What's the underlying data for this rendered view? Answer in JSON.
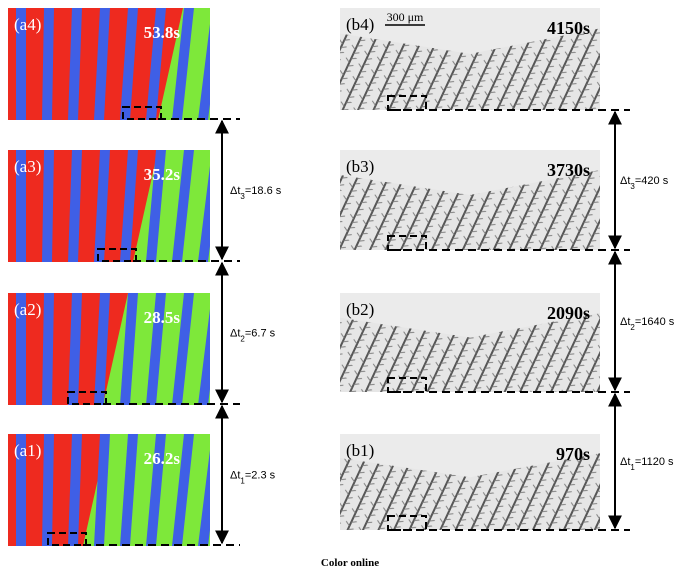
{
  "panels_a": [
    {
      "label": "(a4)",
      "time": "53.8s"
    },
    {
      "label": "(a3)",
      "time": "35.2s"
    },
    {
      "label": "(a2)",
      "time": "28.5s"
    },
    {
      "label": "(a1)",
      "time": "26.2s"
    }
  ],
  "intervals_a": [
    {
      "delta": "Δt",
      "sub": "3",
      "value": "=18.6 s"
    },
    {
      "delta": "Δt",
      "sub": "2",
      "value": "=6.7 s"
    },
    {
      "delta": "Δt",
      "sub": "1",
      "value": "=2.3 s"
    }
  ],
  "panels_b": [
    {
      "label": "(b4)",
      "time": "4150s"
    },
    {
      "label": "(b3)",
      "time": "3730s"
    },
    {
      "label": "(b2)",
      "time": "2090s"
    },
    {
      "label": "(b1)",
      "time": "970s"
    }
  ],
  "intervals_b": [
    {
      "delta": "Δt",
      "sub": "3",
      "value": "=420 s"
    },
    {
      "delta": "Δt",
      "sub": "2",
      "value": "=1640 s"
    },
    {
      "delta": "Δt",
      "sub": "1",
      "value": "=1120 s"
    }
  ],
  "scale_bar": "300 μm",
  "caption": "Color online"
}
